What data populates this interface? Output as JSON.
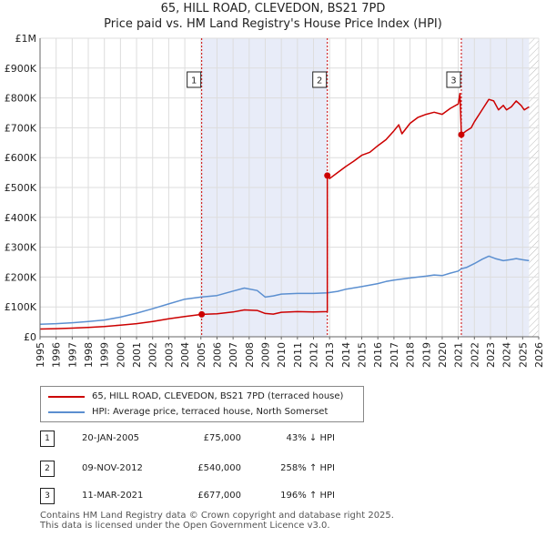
{
  "title_line1": "65, HILL ROAD, CLEVEDON, BS21 7PD",
  "title_line2": "Price paid vs. HM Land Registry's House Price Index (HPI)",
  "chart_data": {
    "type": "line",
    "ylim": [
      0,
      1000000
    ],
    "xlim": [
      1995,
      2026
    ],
    "ytick_labels": [
      "£0",
      "£100K",
      "£200K",
      "£300K",
      "£400K",
      "£500K",
      "£600K",
      "£700K",
      "£800K",
      "£900K",
      "£1M"
    ],
    "ytick_values": [
      0,
      100000,
      200000,
      300000,
      400000,
      500000,
      600000,
      700000,
      800000,
      900000,
      1000000
    ],
    "xtick_labels": [
      "1995",
      "1996",
      "1997",
      "1998",
      "1999",
      "2000",
      "2001",
      "2002",
      "2003",
      "2004",
      "2005",
      "2006",
      "2007",
      "2008",
      "2009",
      "2010",
      "2011",
      "2012",
      "2013",
      "2014",
      "2015",
      "2016",
      "2017",
      "2018",
      "2019",
      "2020",
      "2021",
      "2022",
      "2023",
      "2024",
      "2025",
      "2026"
    ],
    "shaded_periods": [
      [
        2005.05,
        2012.86
      ],
      [
        2021.19,
        2025.4
      ]
    ],
    "hatched_after": 2025.4,
    "series": [
      {
        "name": "65, HILL ROAD, CLEVEDON, BS21 7PD (terraced house)",
        "color": "#cc0000",
        "points": [
          [
            1995.0,
            26000
          ],
          [
            1996.0,
            27000
          ],
          [
            1997.0,
            29000
          ],
          [
            1998.0,
            31000
          ],
          [
            1999.0,
            34000
          ],
          [
            2000.0,
            39000
          ],
          [
            2001.0,
            44000
          ],
          [
            2002.0,
            51000
          ],
          [
            2003.0,
            60000
          ],
          [
            2004.0,
            68000
          ],
          [
            2005.05,
            75000
          ],
          [
            2006.0,
            77000
          ],
          [
            2007.0,
            83000
          ],
          [
            2007.7,
            90000
          ],
          [
            2008.5,
            88000
          ],
          [
            2009.0,
            78000
          ],
          [
            2009.5,
            76000
          ],
          [
            2010.0,
            82000
          ],
          [
            2011.0,
            84000
          ],
          [
            2012.0,
            83000
          ],
          [
            2012.86,
            84000
          ],
          [
            2012.86,
            540000
          ],
          [
            2013.0,
            530000
          ],
          [
            2013.5,
            550000
          ],
          [
            2014.0,
            570000
          ],
          [
            2014.5,
            588000
          ],
          [
            2015.0,
            608000
          ],
          [
            2015.5,
            618000
          ],
          [
            2016.0,
            640000
          ],
          [
            2016.5,
            660000
          ],
          [
            2017.0,
            690000
          ],
          [
            2017.3,
            710000
          ],
          [
            2017.5,
            680000
          ],
          [
            2018.0,
            715000
          ],
          [
            2018.5,
            735000
          ],
          [
            2019.0,
            745000
          ],
          [
            2019.5,
            752000
          ],
          [
            2020.0,
            745000
          ],
          [
            2020.5,
            765000
          ],
          [
            2021.0,
            780000
          ],
          [
            2021.1,
            815000
          ],
          [
            2021.19,
            677000
          ],
          [
            2021.5,
            690000
          ],
          [
            2021.8,
            700000
          ],
          [
            2022.0,
            720000
          ],
          [
            2022.3,
            745000
          ],
          [
            2022.6,
            770000
          ],
          [
            2022.9,
            795000
          ],
          [
            2023.2,
            790000
          ],
          [
            2023.5,
            760000
          ],
          [
            2023.8,
            775000
          ],
          [
            2024.0,
            760000
          ],
          [
            2024.3,
            770000
          ],
          [
            2024.6,
            790000
          ],
          [
            2024.9,
            775000
          ],
          [
            2025.1,
            760000
          ],
          [
            2025.4,
            770000
          ]
        ]
      },
      {
        "name": "HPI: Average price, terraced house, North Somerset",
        "color": "#5b8fd0",
        "points": [
          [
            1995.0,
            42000
          ],
          [
            1996.0,
            44000
          ],
          [
            1997.0,
            47000
          ],
          [
            1998.0,
            51000
          ],
          [
            1999.0,
            56000
          ],
          [
            2000.0,
            66000
          ],
          [
            2001.0,
            79000
          ],
          [
            2002.0,
            94000
          ],
          [
            2003.0,
            110000
          ],
          [
            2004.0,
            126000
          ],
          [
            2005.0,
            133000
          ],
          [
            2006.0,
            138000
          ],
          [
            2007.0,
            153000
          ],
          [
            2007.7,
            163000
          ],
          [
            2008.5,
            155000
          ],
          [
            2009.0,
            133000
          ],
          [
            2009.5,
            137000
          ],
          [
            2010.0,
            143000
          ],
          [
            2011.0,
            145000
          ],
          [
            2012.0,
            145000
          ],
          [
            2012.86,
            147000
          ],
          [
            2013.5,
            152000
          ],
          [
            2014.0,
            159000
          ],
          [
            2015.0,
            168000
          ],
          [
            2016.0,
            178000
          ],
          [
            2016.5,
            185000
          ],
          [
            2017.0,
            190000
          ],
          [
            2018.0,
            197000
          ],
          [
            2019.0,
            203000
          ],
          [
            2019.5,
            207000
          ],
          [
            2020.0,
            205000
          ],
          [
            2020.5,
            213000
          ],
          [
            2021.0,
            220000
          ],
          [
            2021.19,
            228000
          ],
          [
            2021.5,
            232000
          ],
          [
            2022.0,
            245000
          ],
          [
            2022.5,
            260000
          ],
          [
            2022.9,
            270000
          ],
          [
            2023.3,
            262000
          ],
          [
            2023.8,
            255000
          ],
          [
            2024.2,
            258000
          ],
          [
            2024.6,
            262000
          ],
          [
            2025.0,
            258000
          ],
          [
            2025.4,
            255000
          ]
        ]
      }
    ],
    "markers": [
      {
        "label": "1",
        "x": 2005.05,
        "y": 75000
      },
      {
        "label": "2",
        "x": 2012.86,
        "y": 540000
      },
      {
        "label": "3",
        "x": 2021.19,
        "y": 677000
      }
    ]
  },
  "legend": {
    "property_label": "65, HILL ROAD, CLEVEDON, BS21 7PD (terraced house)",
    "hpi_label": "HPI: Average price, terraced house, North Somerset",
    "property_color": "#cc0000",
    "hpi_color": "#5b8fd0"
  },
  "transactions": [
    {
      "num": "1",
      "date": "20-JAN-2005",
      "price": "£75,000",
      "hpi": "43% ↓ HPI"
    },
    {
      "num": "2",
      "date": "09-NOV-2012",
      "price": "£540,000",
      "hpi": "258% ↑ HPI"
    },
    {
      "num": "3",
      "date": "11-MAR-2021",
      "price": "£677,000",
      "hpi": "196% ↑ HPI"
    }
  ],
  "footer_line1": "Contains HM Land Registry data © Crown copyright and database right 2025.",
  "footer_line2": "This data is licensed under the Open Government Licence v3.0."
}
